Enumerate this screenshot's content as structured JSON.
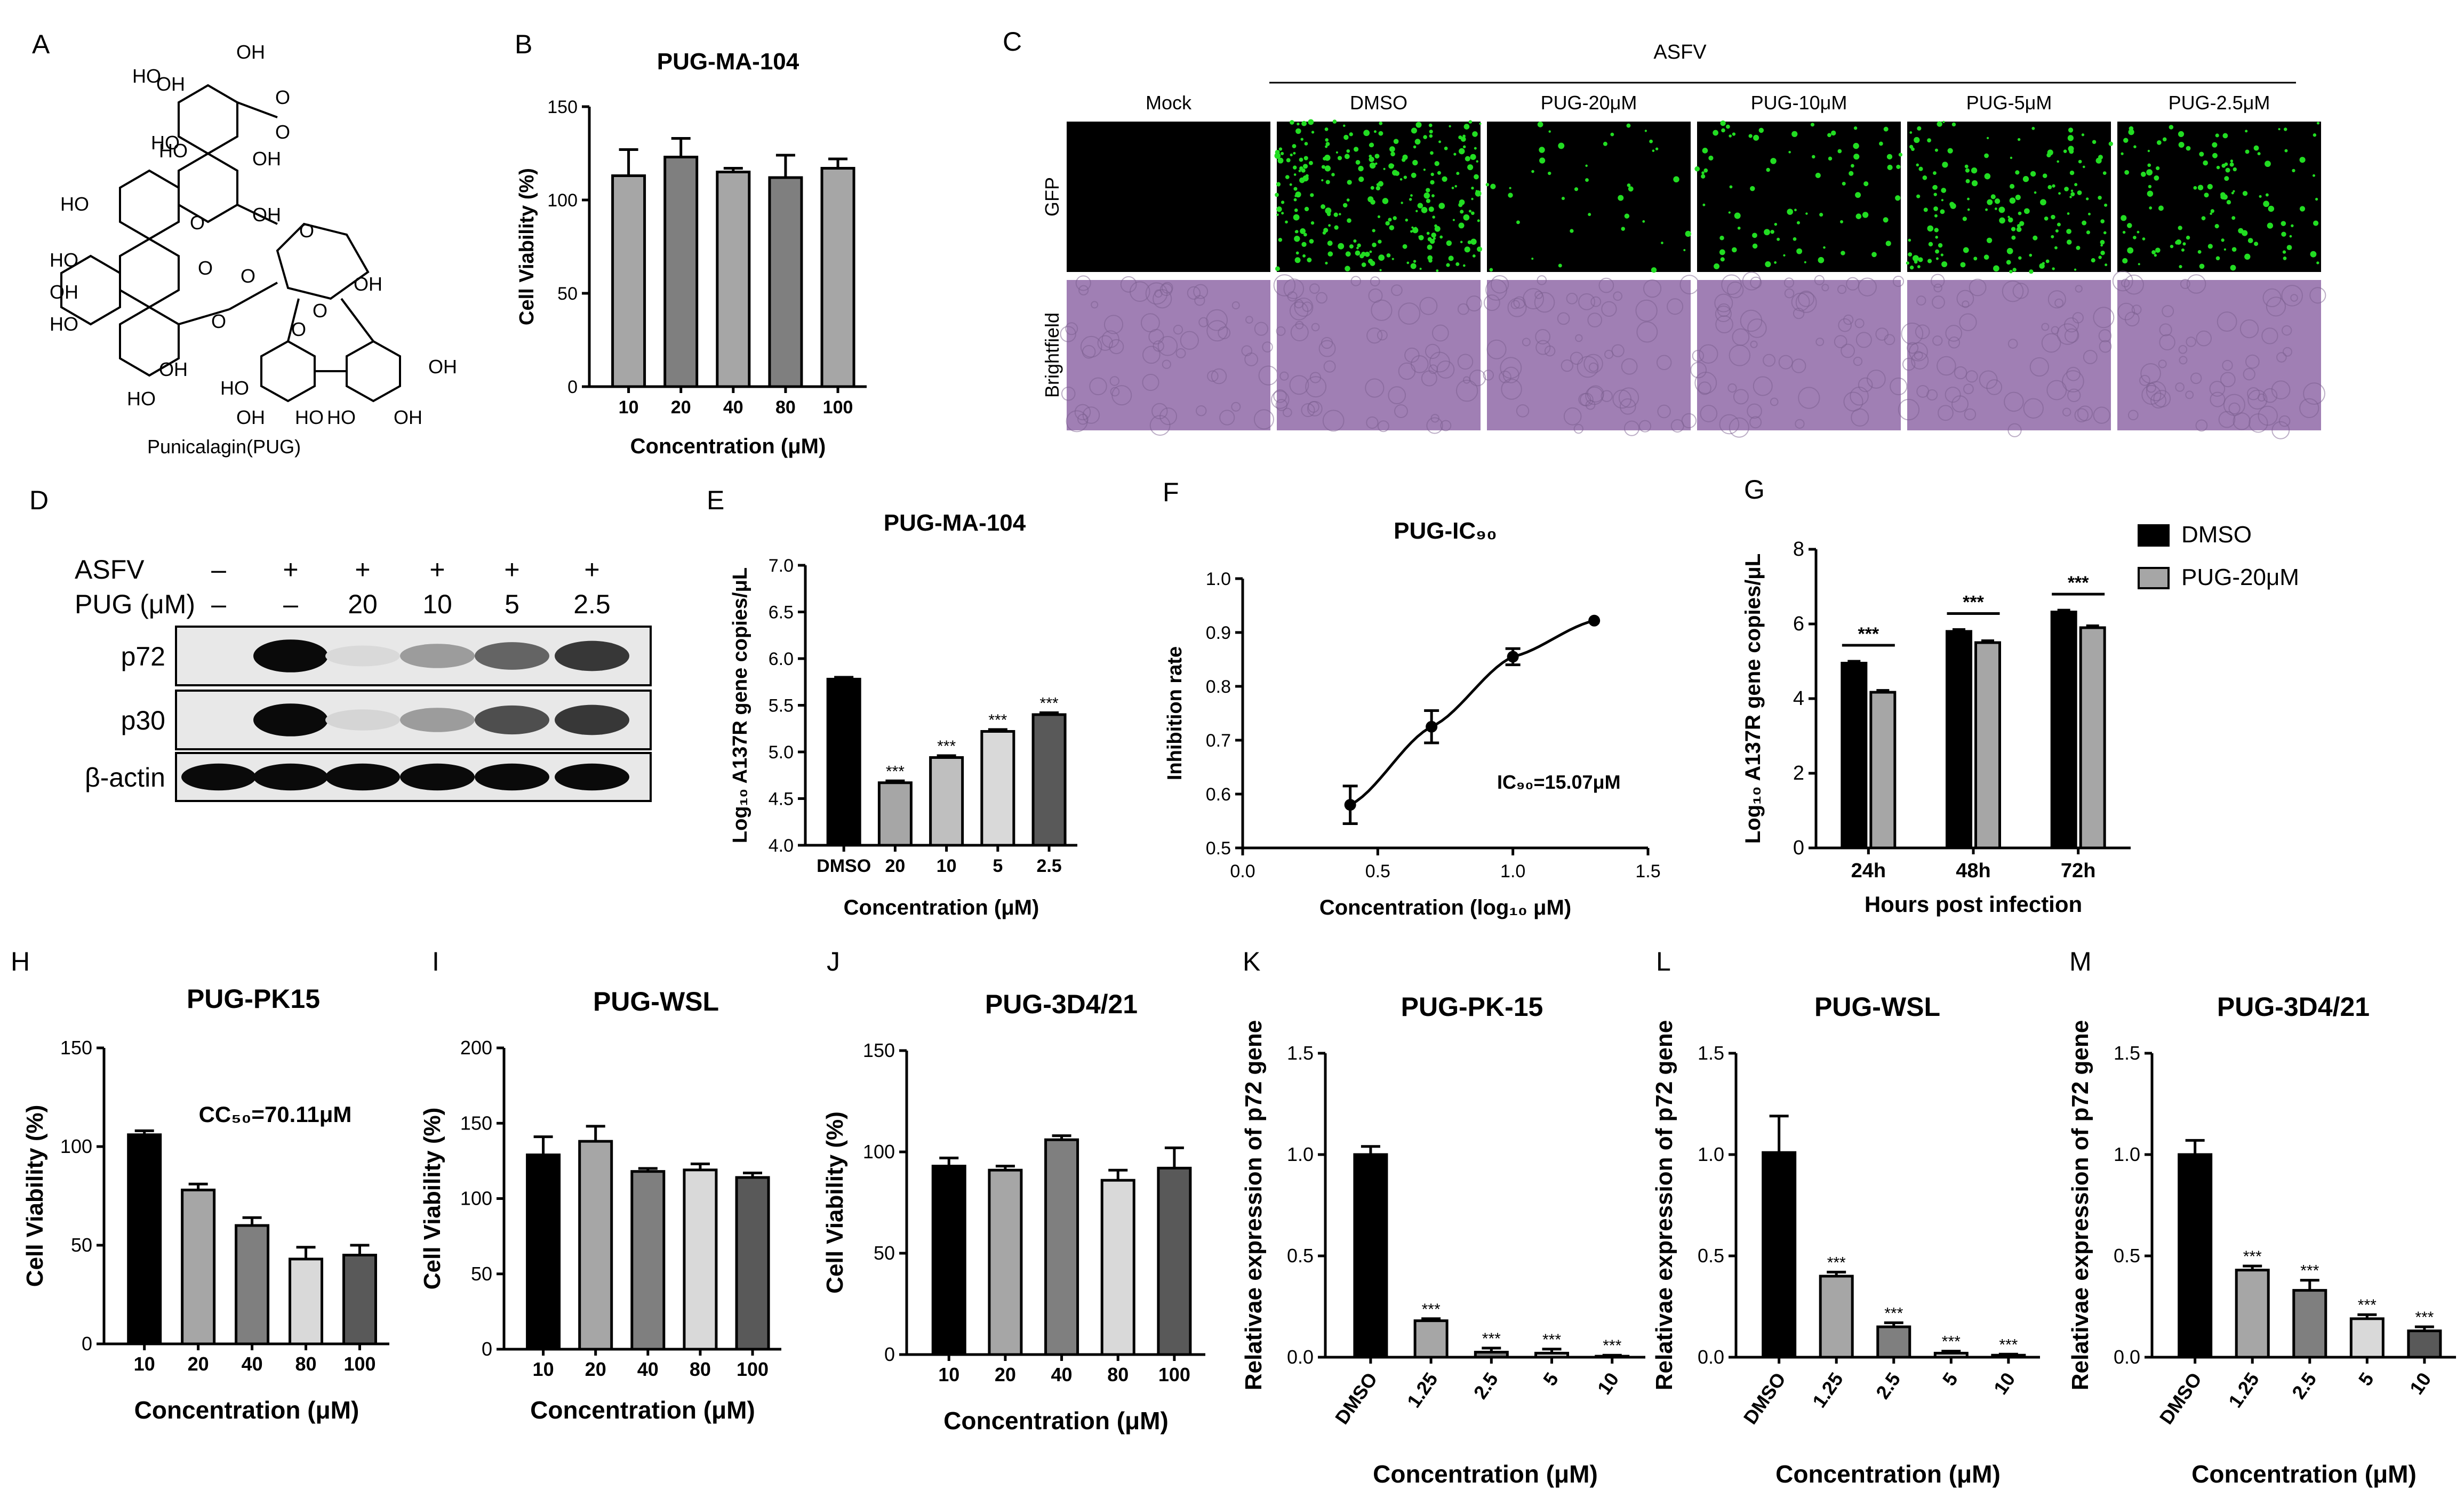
{
  "panel_letters": [
    "A",
    "B",
    "C",
    "D",
    "E",
    "F",
    "G",
    "H",
    "I",
    "J",
    "K",
    "L",
    "M"
  ],
  "structure": {
    "name": "Punicalagin(PUG)",
    "atom_labels": [
      "HO",
      "OH",
      "HO",
      "HO",
      "OH",
      "OH",
      "HO",
      "OH",
      "HO",
      "OH",
      "HO",
      "OH",
      "HO",
      "OH",
      "HO",
      "HO",
      "OH",
      "OH",
      "HO",
      "OH",
      "O",
      "O",
      "O",
      "O",
      "O",
      "O",
      "O",
      "O",
      "O"
    ]
  },
  "micrographs": {
    "group_label": "ASFV",
    "columns": [
      "Mock",
      "DMSO",
      "PUG-20μM",
      "PUG-10μM",
      "PUG-5μM",
      "PUG-2.5μM"
    ],
    "rows": [
      "GFP",
      "Brightfield"
    ],
    "gfp_density": [
      0,
      1.0,
      0.15,
      0.3,
      0.6,
      0.45
    ],
    "gfp_color": "#22dd22",
    "brightfield_color": "#a07fb4"
  },
  "western_blot": {
    "treatment_labels": [
      "ASFV",
      "PUG (μM)"
    ],
    "asfv_row": [
      "–",
      "+",
      "+",
      "+",
      "+",
      "+"
    ],
    "pug_row": [
      "–",
      "–",
      "20",
      "10",
      "5",
      "2.5"
    ],
    "bands": [
      {
        "name": "p72",
        "intensity": [
          0,
          1.0,
          0.08,
          0.35,
          0.6,
          0.8
        ]
      },
      {
        "name": "p30",
        "intensity": [
          0,
          1.0,
          0.1,
          0.35,
          0.7,
          0.8
        ]
      },
      {
        "name": "β-actin",
        "intensity": [
          1,
          1,
          1,
          1,
          1,
          1
        ]
      }
    ]
  },
  "chart_data": [
    {
      "id": "B",
      "type": "bar",
      "title": "PUG-MA-104",
      "xlabel": "Concentration (μM)",
      "ylabel": "Cell Viability (%)",
      "categories": [
        "10",
        "20",
        "40",
        "80",
        "100"
      ],
      "values": [
        113,
        123,
        115,
        112,
        117
      ],
      "errors": [
        14,
        10,
        2,
        12,
        5
      ],
      "ylim": [
        0,
        150
      ],
      "yticks": [
        "0",
        "50",
        "100",
        "150"
      ],
      "colors": [
        "#a6a6a6",
        "#7f7f7f",
        "#a6a6a6",
        "#7f7f7f",
        "#a6a6a6"
      ]
    },
    {
      "id": "E",
      "type": "bar",
      "title": "PUG-MA-104",
      "xlabel": "Concentration (μM)",
      "ylabel": "Log₁₀ A137R gene copies/μL",
      "categories": [
        "DMSO",
        "20",
        "10",
        "5",
        "2.5"
      ],
      "values": [
        5.78,
        4.67,
        4.94,
        5.22,
        5.4
      ],
      "errors": [
        0.02,
        0.02,
        0.02,
        0.02,
        0.02
      ],
      "significance": [
        "",
        "***",
        "***",
        "***",
        "***"
      ],
      "ylim": [
        4.0,
        7.0
      ],
      "yticks": [
        "4.0",
        "4.5",
        "5.0",
        "5.5",
        "6.0",
        "6.5",
        "7.0"
      ],
      "colors": [
        "#000000",
        "#a6a6a6",
        "#bfbfbf",
        "#d9d9d9",
        "#595959"
      ]
    },
    {
      "id": "F",
      "type": "scatter",
      "title": "PUG-IC₉₀",
      "xlabel": "Concentration (log₁₀ μM)",
      "ylabel": "Inhibition rate",
      "x": [
        0.398,
        0.699,
        1.0,
        1.301
      ],
      "y": [
        0.58,
        0.725,
        0.855,
        0.922
      ],
      "errors": [
        0.035,
        0.03,
        0.015,
        0.0
      ],
      "xlim": [
        0.0,
        1.5
      ],
      "ylim": [
        0.5,
        1.0
      ],
      "xticks": [
        "0.0",
        "0.5",
        "1.0",
        "1.5"
      ],
      "yticks": [
        "0.5",
        "0.6",
        "0.7",
        "0.8",
        "0.9",
        "1.0"
      ],
      "annotation": "IC₉₀=15.07μM"
    },
    {
      "id": "G",
      "type": "bar",
      "title": "",
      "xlabel": "Hours post infection",
      "ylabel": "Log₁₀ A137R gene copies/μL",
      "categories": [
        "24h",
        "48h",
        "72h"
      ],
      "series": [
        {
          "name": "DMSO",
          "values": [
            4.95,
            5.8,
            6.32
          ],
          "errors": [
            0.05,
            0.05,
            0.05
          ],
          "color": "#000000"
        },
        {
          "name": "PUG-20μM",
          "values": [
            4.17,
            5.5,
            5.9
          ],
          "errors": [
            0.05,
            0.05,
            0.05
          ],
          "color": "#a6a6a6"
        }
      ],
      "significance": [
        "***",
        "***",
        "***"
      ],
      "ylim": [
        0,
        8
      ],
      "yticks": [
        "0",
        "2",
        "4",
        "6",
        "8"
      ],
      "legend": "top-right"
    },
    {
      "id": "H",
      "type": "bar",
      "title": "PUG-PK15",
      "xlabel": "Concentration (μM)",
      "ylabel": "Cell Viability (%)",
      "categories": [
        "10",
        "20",
        "40",
        "80",
        "100"
      ],
      "values": [
        106,
        78,
        60,
        43,
        45
      ],
      "errors": [
        2,
        3,
        4,
        6,
        5
      ],
      "ylim": [
        0,
        150
      ],
      "yticks": [
        "0",
        "50",
        "100",
        "150"
      ],
      "annotation": "CC₅₀=70.11μM",
      "colors": [
        "#000000",
        "#a6a6a6",
        "#7f7f7f",
        "#d9d9d9",
        "#595959"
      ]
    },
    {
      "id": "I",
      "type": "bar",
      "title": "PUG-WSL",
      "xlabel": "Concentration (μM)",
      "ylabel": "Cell Viability (%)",
      "categories": [
        "10",
        "20",
        "40",
        "80",
        "100"
      ],
      "values": [
        129,
        138,
        118,
        119,
        114
      ],
      "errors": [
        12,
        10,
        2,
        4,
        3
      ],
      "ylim": [
        0,
        200
      ],
      "yticks": [
        "0",
        "50",
        "100",
        "150",
        "200"
      ],
      "colors": [
        "#000000",
        "#a6a6a6",
        "#7f7f7f",
        "#d9d9d9",
        "#595959"
      ]
    },
    {
      "id": "J",
      "type": "bar",
      "title": "PUG-3D4/21",
      "xlabel": "Concentration (μM)",
      "ylabel": "Cell Viability (%)",
      "categories": [
        "10",
        "20",
        "40",
        "80",
        "100"
      ],
      "values": [
        93,
        91,
        106,
        86,
        92
      ],
      "errors": [
        4,
        2,
        2,
        5,
        10
      ],
      "ylim": [
        0,
        150
      ],
      "yticks": [
        "0",
        "50",
        "100",
        "150"
      ],
      "colors": [
        "#000000",
        "#a6a6a6",
        "#7f7f7f",
        "#d9d9d9",
        "#595959"
      ]
    },
    {
      "id": "K",
      "type": "bar",
      "title": "PUG-PK-15",
      "xlabel": "Concentration (μM)",
      "ylabel": "Relativae expression of p72 gene",
      "categories": [
        "DMSO",
        "1.25",
        "2.5",
        "5",
        "10"
      ],
      "values": [
        1.0,
        0.18,
        0.025,
        0.02,
        0.005
      ],
      "errors": [
        0.04,
        0.01,
        0.02,
        0.02,
        0.005
      ],
      "significance": [
        "",
        "***",
        "***",
        "***",
        "***"
      ],
      "ylim": [
        0,
        1.5
      ],
      "yticks": [
        "0.0",
        "0.5",
        "1.0",
        "1.5"
      ],
      "colors": [
        "#000000",
        "#a6a6a6",
        "#7f7f7f",
        "#d9d9d9",
        "#595959"
      ]
    },
    {
      "id": "L",
      "type": "bar",
      "title": "PUG-WSL",
      "xlabel": "Concentration (μM)",
      "ylabel": "Relativae expression of p72 gene",
      "categories": [
        "DMSO",
        "1.25",
        "2.5",
        "5",
        "10"
      ],
      "values": [
        1.01,
        0.4,
        0.15,
        0.02,
        0.01
      ],
      "errors": [
        0.18,
        0.02,
        0.02,
        0.01,
        0.005
      ],
      "significance": [
        "",
        "***",
        "***",
        "***",
        "***"
      ],
      "ylim": [
        0,
        1.5
      ],
      "yticks": [
        "0.0",
        "0.5",
        "1.0",
        "1.5"
      ],
      "colors": [
        "#000000",
        "#a6a6a6",
        "#7f7f7f",
        "#d9d9d9",
        "#595959"
      ]
    },
    {
      "id": "M",
      "type": "bar",
      "title": "PUG-3D4/21",
      "xlabel": "Concentration (μM)",
      "ylabel": "Relativae expression of p72 gene",
      "categories": [
        "DMSO",
        "1.25",
        "2.5",
        "5",
        "10"
      ],
      "values": [
        1.0,
        0.43,
        0.33,
        0.19,
        0.13
      ],
      "errors": [
        0.07,
        0.02,
        0.05,
        0.02,
        0.02
      ],
      "significance": [
        "",
        "***",
        "***",
        "***",
        "***"
      ],
      "ylim": [
        0,
        1.5
      ],
      "yticks": [
        "0.0",
        "0.5",
        "1.0",
        "1.5"
      ],
      "colors": [
        "#000000",
        "#a6a6a6",
        "#7f7f7f",
        "#d9d9d9",
        "#595959"
      ]
    }
  ]
}
